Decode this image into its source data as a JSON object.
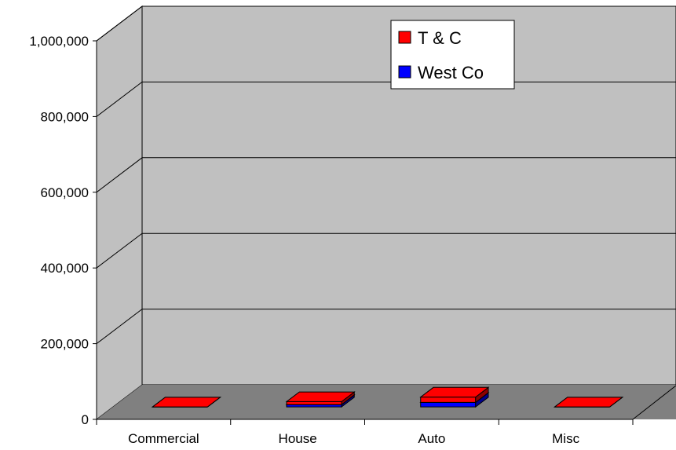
{
  "chart_data": {
    "type": "bar",
    "style": "3d-stacked-column",
    "categories": [
      "Commercial",
      "House",
      "Auto",
      "Misc"
    ],
    "series": [
      {
        "name": "West Co",
        "color": "#0000ff",
        "values": [
          0,
          6000,
          12000,
          0
        ]
      },
      {
        "name": "T & C",
        "color": "#ff0000",
        "values": [
          0,
          8000,
          14000,
          0
        ]
      }
    ],
    "yticks": [
      "0",
      "200,000",
      "400,000",
      "600,000",
      "800,000",
      "1,000,000"
    ],
    "ylim": [
      0,
      1000000
    ],
    "grid": true,
    "legend_position": "top-right",
    "colors": {
      "wall": "#c0c0c0",
      "floor": "#808080"
    }
  }
}
